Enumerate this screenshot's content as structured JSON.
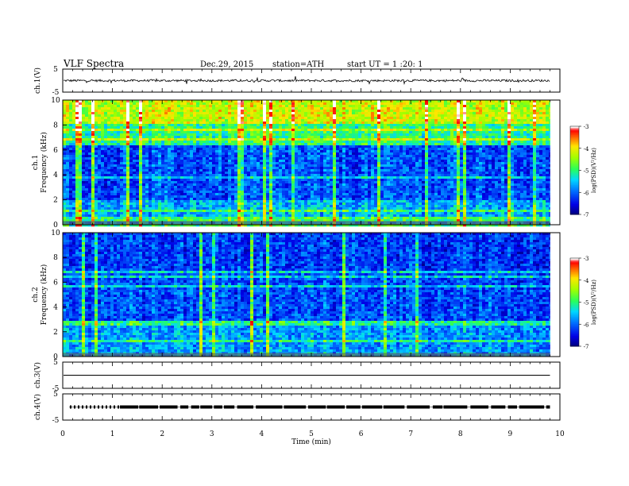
{
  "header": {
    "title": "VLF  Spectra",
    "date": "Dec.29, 2015",
    "station": "station=ATH",
    "start": "start  UT  =   1  :20: 1"
  },
  "colors": {
    "spectrogram_low": "#00008b",
    "spectrogram_mid": "#00c8ff",
    "spectrogram_green": "#32ff32",
    "spectrogram_high": "#ffff00",
    "spectrogram_peak": "#ff0000",
    "colorbar_top": "#ffffff"
  },
  "chart_data": [
    {
      "type": "line",
      "name": "ch1-voltage",
      "ylabel": "ch.1(V)",
      "yticks": [
        "5",
        "-5"
      ],
      "ylim": [
        -5,
        5
      ],
      "xlim": [
        0,
        10
      ],
      "data_extent_min": 9.8,
      "baseline": 0.0,
      "noise_amplitude": 0.6
    },
    {
      "type": "heatmap",
      "name": "ch1-spectrogram",
      "ylabel": "ch.1\nFrequency  (kHz)",
      "yticks": [
        "0",
        "2",
        "4",
        "6",
        "8",
        "10"
      ],
      "ylim": [
        0,
        10
      ],
      "xlim": [
        0,
        10
      ],
      "log_psd_bands": [
        {
          "from_khz": 0,
          "to_khz": 2,
          "log_psd": -5.6
        },
        {
          "from_khz": 2,
          "to_khz": 6.4,
          "log_psd": -6.1
        },
        {
          "from_khz": 6.4,
          "to_khz": 8.2,
          "log_psd": -5.0
        },
        {
          "from_khz": 8.2,
          "to_khz": 10,
          "log_psd": -4.2
        }
      ],
      "colorbar": {
        "label": "log(PSD)(V²/Hz)",
        "ticks": [
          "-3",
          "-4",
          "-5",
          "-6",
          "-7"
        ],
        "range": [
          -7,
          -3
        ]
      }
    },
    {
      "type": "heatmap",
      "name": "ch2-spectrogram",
      "ylabel": "ch.2\nFrequency  (kHz)",
      "yticks": [
        "0",
        "2",
        "4",
        "6",
        "8",
        "10"
      ],
      "ylim": [
        0,
        10
      ],
      "xlim": [
        0,
        10
      ],
      "log_psd_bands": [
        {
          "from_khz": 0,
          "to_khz": 3,
          "log_psd": -5.7
        },
        {
          "from_khz": 3,
          "to_khz": 7,
          "log_psd": -6.1
        },
        {
          "from_khz": 7,
          "to_khz": 10,
          "log_psd": -6.2
        }
      ],
      "colorbar": {
        "label": "log(PSD)(V²/Hz)",
        "ticks": [
          "-3",
          "-4",
          "-5",
          "-6",
          "-7"
        ],
        "range": [
          -7,
          -3
        ]
      }
    },
    {
      "type": "line",
      "name": "ch3-voltage",
      "ylabel": "ch.3(V)",
      "yticks": [
        "5",
        "-5"
      ],
      "ylim": [
        -5,
        5
      ],
      "xlim": [
        0,
        10
      ],
      "data_extent_min": 9.8,
      "baseline": 0.0
    },
    {
      "type": "line",
      "name": "ch4-voltage",
      "ylabel": "ch.4(V)",
      "yticks": [
        "5",
        "-5"
      ],
      "ylim": [
        -5,
        5
      ],
      "xlim": [
        0,
        10
      ],
      "data_extent_min": 9.8,
      "baseline": 0.0,
      "pulsed": true
    }
  ],
  "xaxis": {
    "label": "Time  (min)",
    "ticks": [
      "0",
      "1",
      "2",
      "3",
      "4",
      "5",
      "6",
      "7",
      "8",
      "9",
      "10"
    ],
    "range": [
      0,
      10
    ]
  }
}
